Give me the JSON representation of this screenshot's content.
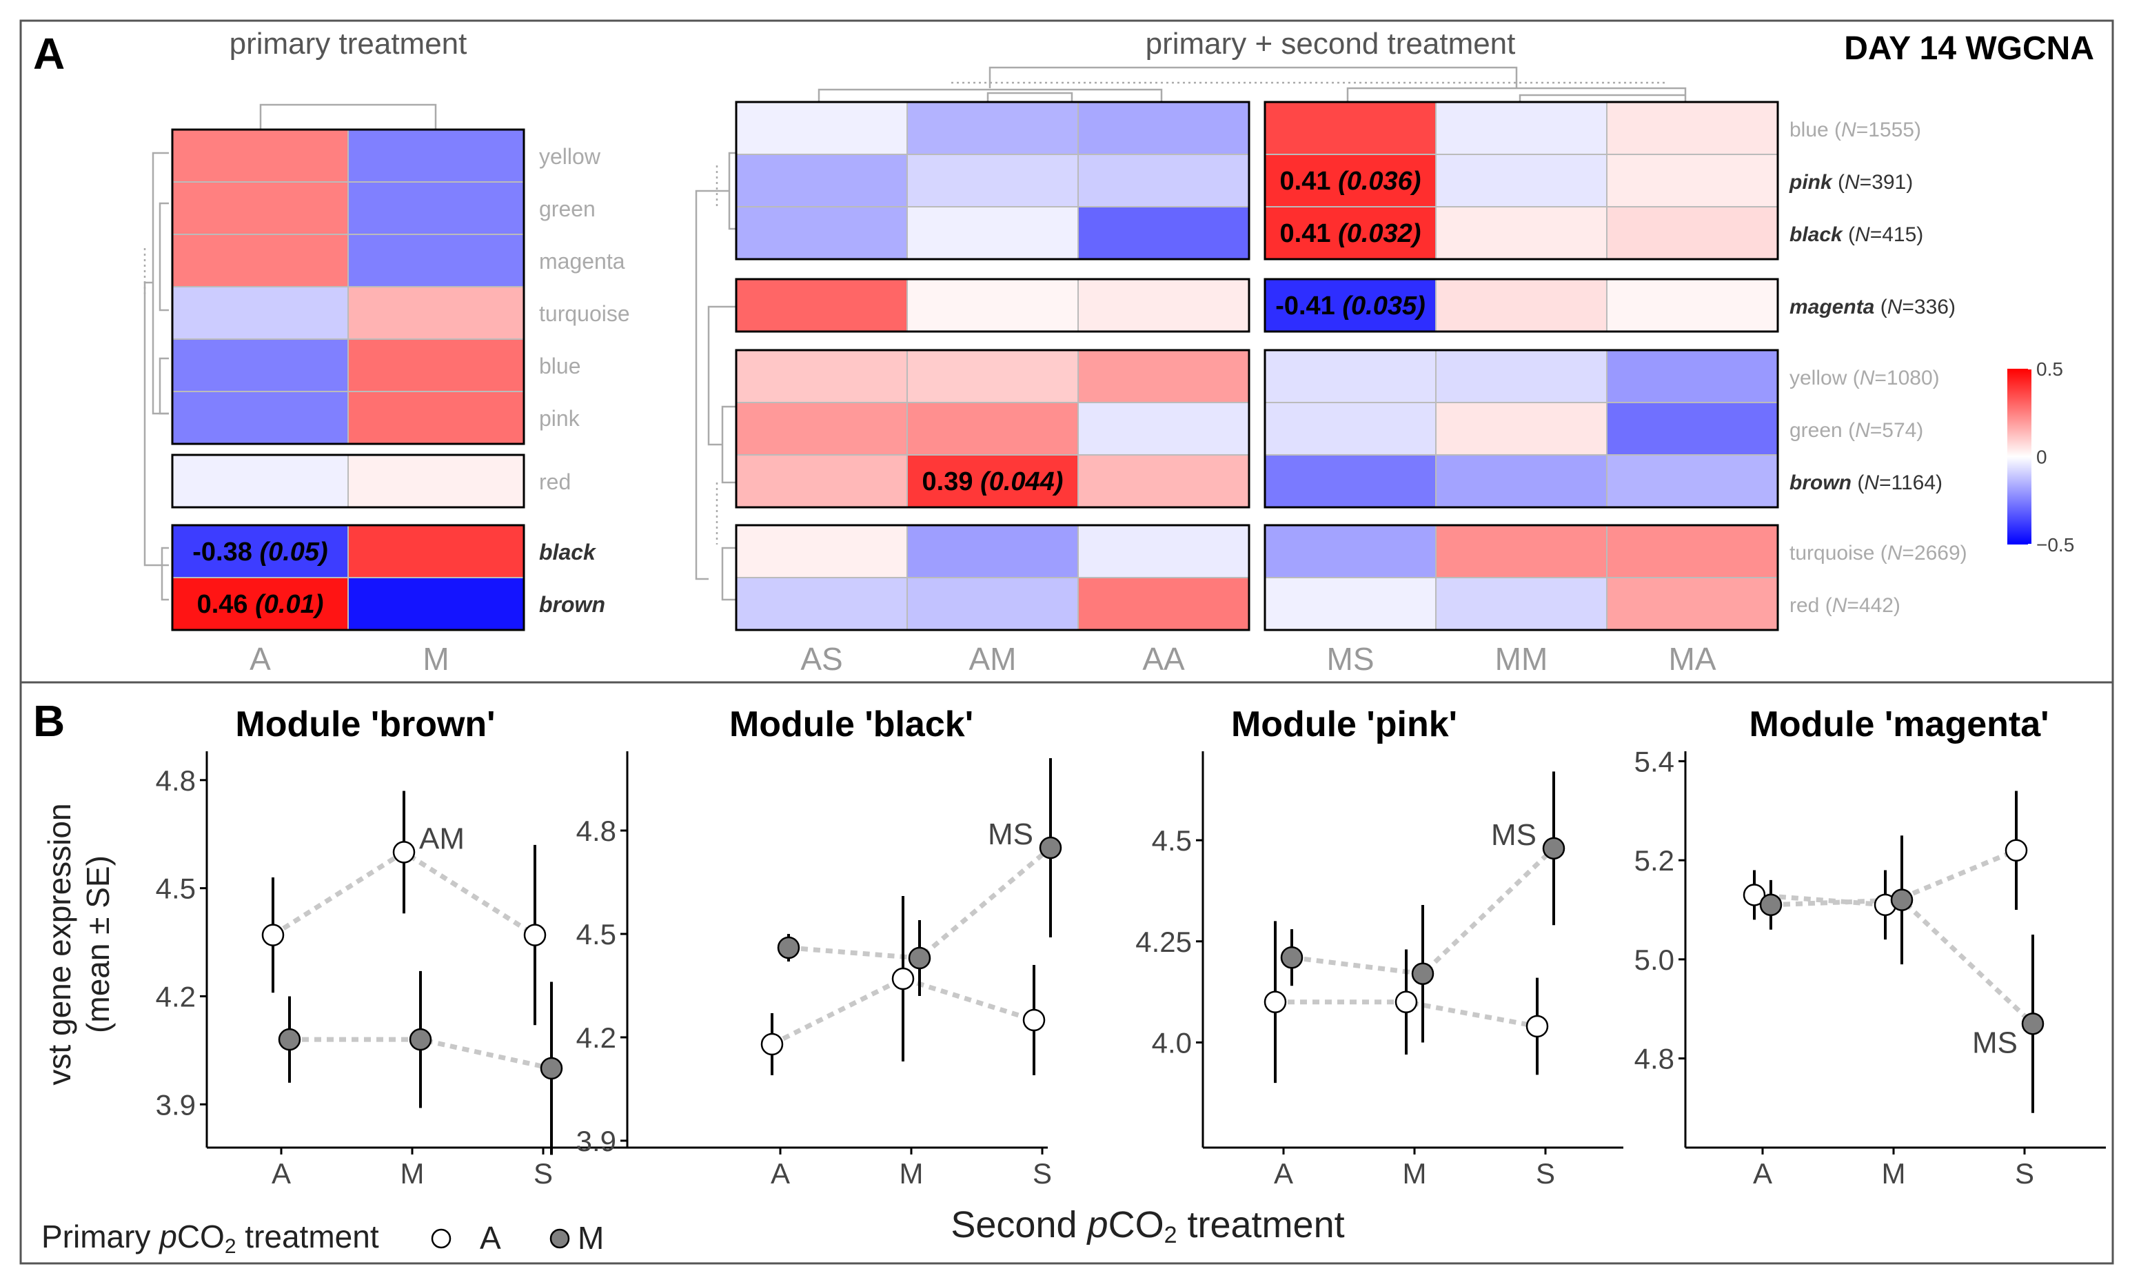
{
  "panel_a": {
    "letter": "A",
    "title_left": "primary treatment",
    "title_mid": "primary + second treatment",
    "title_right": "DAY 14 WGCNA"
  },
  "panel_b": {
    "letter": "B",
    "ylabel_line1": "vst gene expression",
    "ylabel_line2": "(mean ± SE)",
    "xlabel_pre": "Second ",
    "xlabel_p": "p",
    "xlabel_co": "CO",
    "xlabel_sub": "2",
    "xlabel_post": " treatment",
    "legend": {
      "pre": "Primary ",
      "p": "p",
      "co": "CO",
      "sub": "2",
      "post": " treatment",
      "items": [
        {
          "label": "A",
          "fill": "#ffffff"
        },
        {
          "label": "M",
          "fill": "#808080"
        }
      ]
    }
  },
  "colorbar": {
    "ticks": [
      {
        "value": 0.5,
        "label": "0.5"
      },
      {
        "value": 0,
        "label": "0"
      },
      {
        "value": -0.5,
        "label": "−0.5"
      }
    ],
    "low": "#0000ff",
    "mid": "#ffffff",
    "high": "#ff0000"
  },
  "chart_data": [
    {
      "type": "heatmap",
      "title": "primary treatment",
      "columns": [
        "A",
        "M"
      ],
      "groups": [
        {
          "rows": [
            {
              "label": "yellow",
              "bold": false,
              "values": [
                0.25,
                -0.25
              ]
            },
            {
              "label": "green",
              "bold": false,
              "values": [
                0.25,
                -0.25
              ]
            },
            {
              "label": "magenta",
              "bold": false,
              "values": [
                0.25,
                -0.25
              ]
            },
            {
              "label": "turquoise",
              "bold": false,
              "values": [
                -0.1,
                0.15
              ]
            },
            {
              "label": "blue",
              "bold": false,
              "values": [
                -0.25,
                0.28
              ]
            },
            {
              "label": "pink",
              "bold": false,
              "values": [
                -0.25,
                0.28
              ]
            }
          ]
        },
        {
          "rows": [
            {
              "label": "red",
              "bold": false,
              "values": [
                -0.03,
                0.03
              ]
            }
          ]
        },
        {
          "rows": [
            {
              "label": "black",
              "bold": true,
              "values": [
                -0.38,
                0.38
              ],
              "cell_labels": [
                {
                  "col": 0,
                  "value": "-0.38",
                  "p": "(0.05)"
                }
              ]
            },
            {
              "label": "brown",
              "bold": true,
              "values": [
                0.46,
                -0.46
              ],
              "cell_labels": [
                {
                  "col": 0,
                  "value": "0.46",
                  "p": "(0.01)"
                }
              ]
            }
          ]
        }
      ]
    },
    {
      "type": "heatmap",
      "title": "primary + second treatment",
      "column_blocks": [
        [
          "AS",
          "AM",
          "AA"
        ],
        [
          "MS",
          "MM",
          "MA"
        ]
      ],
      "groups": [
        {
          "rows": [
            {
              "label": "blue",
              "n": "1555",
              "bold": false,
              "values": [
                -0.03,
                -0.15,
                -0.17,
                0.36,
                -0.04,
                0.05
              ]
            },
            {
              "label": "pink",
              "n": "391",
              "bold": true,
              "values": [
                -0.16,
                -0.08,
                -0.1,
                0.41,
                -0.05,
                0.04
              ],
              "cell_labels": [
                {
                  "col": 3,
                  "value": "0.41",
                  "p": "(0.036)"
                }
              ]
            },
            {
              "label": "black",
              "n": "415",
              "bold": true,
              "values": [
                -0.16,
                -0.03,
                -0.3,
                0.41,
                0.04,
                0.07
              ],
              "cell_labels": [
                {
                  "col": 3,
                  "value": "0.41",
                  "p": "(0.032)"
                }
              ]
            }
          ]
        },
        {
          "rows": [
            {
              "label": "magenta",
              "n": "336",
              "bold": true,
              "values": [
                0.3,
                0.02,
                0.04,
                -0.41,
                0.06,
                0.02
              ],
              "cell_labels": [
                {
                  "col": 3,
                  "value": "-0.41",
                  "p": "(0.035)"
                }
              ]
            }
          ]
        },
        {
          "rows": [
            {
              "label": "yellow",
              "n": "1080",
              "bold": false,
              "values": [
                0.11,
                0.1,
                0.19,
                -0.06,
                -0.07,
                -0.2
              ]
            },
            {
              "label": "green",
              "n": "574",
              "bold": false,
              "values": [
                0.2,
                0.22,
                -0.05,
                -0.06,
                0.05,
                -0.28
              ]
            },
            {
              "label": "brown",
              "n": "1164",
              "bold": true,
              "values": [
                0.14,
                0.39,
                0.14,
                -0.26,
                -0.18,
                -0.15
              ],
              "cell_labels": [
                {
                  "col": 1,
                  "value": "0.39",
                  "p": "(0.044)"
                }
              ]
            }
          ]
        },
        {
          "rows": [
            {
              "label": "turquoise",
              "n": "2669",
              "bold": false,
              "values": [
                0.03,
                -0.19,
                -0.04,
                -0.18,
                0.22,
                0.22
              ]
            },
            {
              "label": "red",
              "n": "442",
              "bold": false,
              "values": [
                -0.1,
                -0.12,
                0.26,
                -0.03,
                -0.08,
                0.18
              ]
            }
          ]
        }
      ]
    },
    {
      "type": "scatter",
      "title": "Module 'brown'",
      "categories": [
        "A",
        "M",
        "S"
      ],
      "yticks": [
        3.9,
        4.2,
        4.5,
        4.8
      ],
      "ylim": [
        3.78,
        4.88
      ],
      "series": [
        {
          "name": "A",
          "values": [
            4.37,
            4.6,
            4.37
          ],
          "err": [
            0.16,
            0.17,
            0.25
          ]
        },
        {
          "name": "M",
          "values": [
            4.08,
            4.08,
            4.0
          ],
          "err": [
            0.12,
            0.19,
            0.24
          ]
        }
      ],
      "annotations": [
        {
          "series": 0,
          "index": 1,
          "text": "AM"
        }
      ]
    },
    {
      "type": "scatter",
      "title": "Module 'black'",
      "categories": [
        "A",
        "M",
        "S"
      ],
      "yticks": [
        3.9,
        4.2,
        4.5,
        4.8
      ],
      "ylim": [
        3.88,
        5.03
      ],
      "series": [
        {
          "name": "A",
          "values": [
            4.18,
            4.37,
            4.25
          ],
          "err": [
            0.09,
            0.24,
            0.16
          ]
        },
        {
          "name": "M",
          "values": [
            4.46,
            4.43,
            4.75
          ],
          "err": [
            0.04,
            0.11,
            0.26
          ]
        }
      ],
      "annotations": [
        {
          "series": 1,
          "index": 2,
          "text": "MS"
        }
      ]
    },
    {
      "type": "scatter",
      "title": "Module 'pink'",
      "categories": [
        "A",
        "M",
        "S"
      ],
      "yticks": [
        4.0,
        4.25,
        4.5
      ],
      "ylim": [
        3.74,
        4.72
      ],
      "series": [
        {
          "name": "A",
          "values": [
            4.1,
            4.1,
            4.04
          ],
          "err": [
            0.2,
            0.13,
            0.12
          ]
        },
        {
          "name": "M",
          "values": [
            4.21,
            4.17,
            4.48
          ],
          "err": [
            0.07,
            0.17,
            0.19
          ]
        }
      ],
      "annotations": [
        {
          "series": 1,
          "index": 2,
          "text": "MS"
        }
      ]
    },
    {
      "type": "scatter",
      "title": "Module 'magenta'",
      "categories": [
        "A",
        "M",
        "S"
      ],
      "yticks": [
        4.8,
        5.0,
        5.2,
        5.4
      ],
      "ylim": [
        4.62,
        5.42
      ],
      "series": [
        {
          "name": "A",
          "values": [
            5.13,
            5.11,
            5.22
          ],
          "err": [
            0.05,
            0.07,
            0.12
          ]
        },
        {
          "name": "M",
          "values": [
            5.11,
            5.12,
            4.87
          ],
          "err": [
            0.05,
            0.13,
            0.18
          ]
        }
      ],
      "annotations": [
        {
          "series": 1,
          "index": 2,
          "text": "MS"
        }
      ]
    }
  ]
}
